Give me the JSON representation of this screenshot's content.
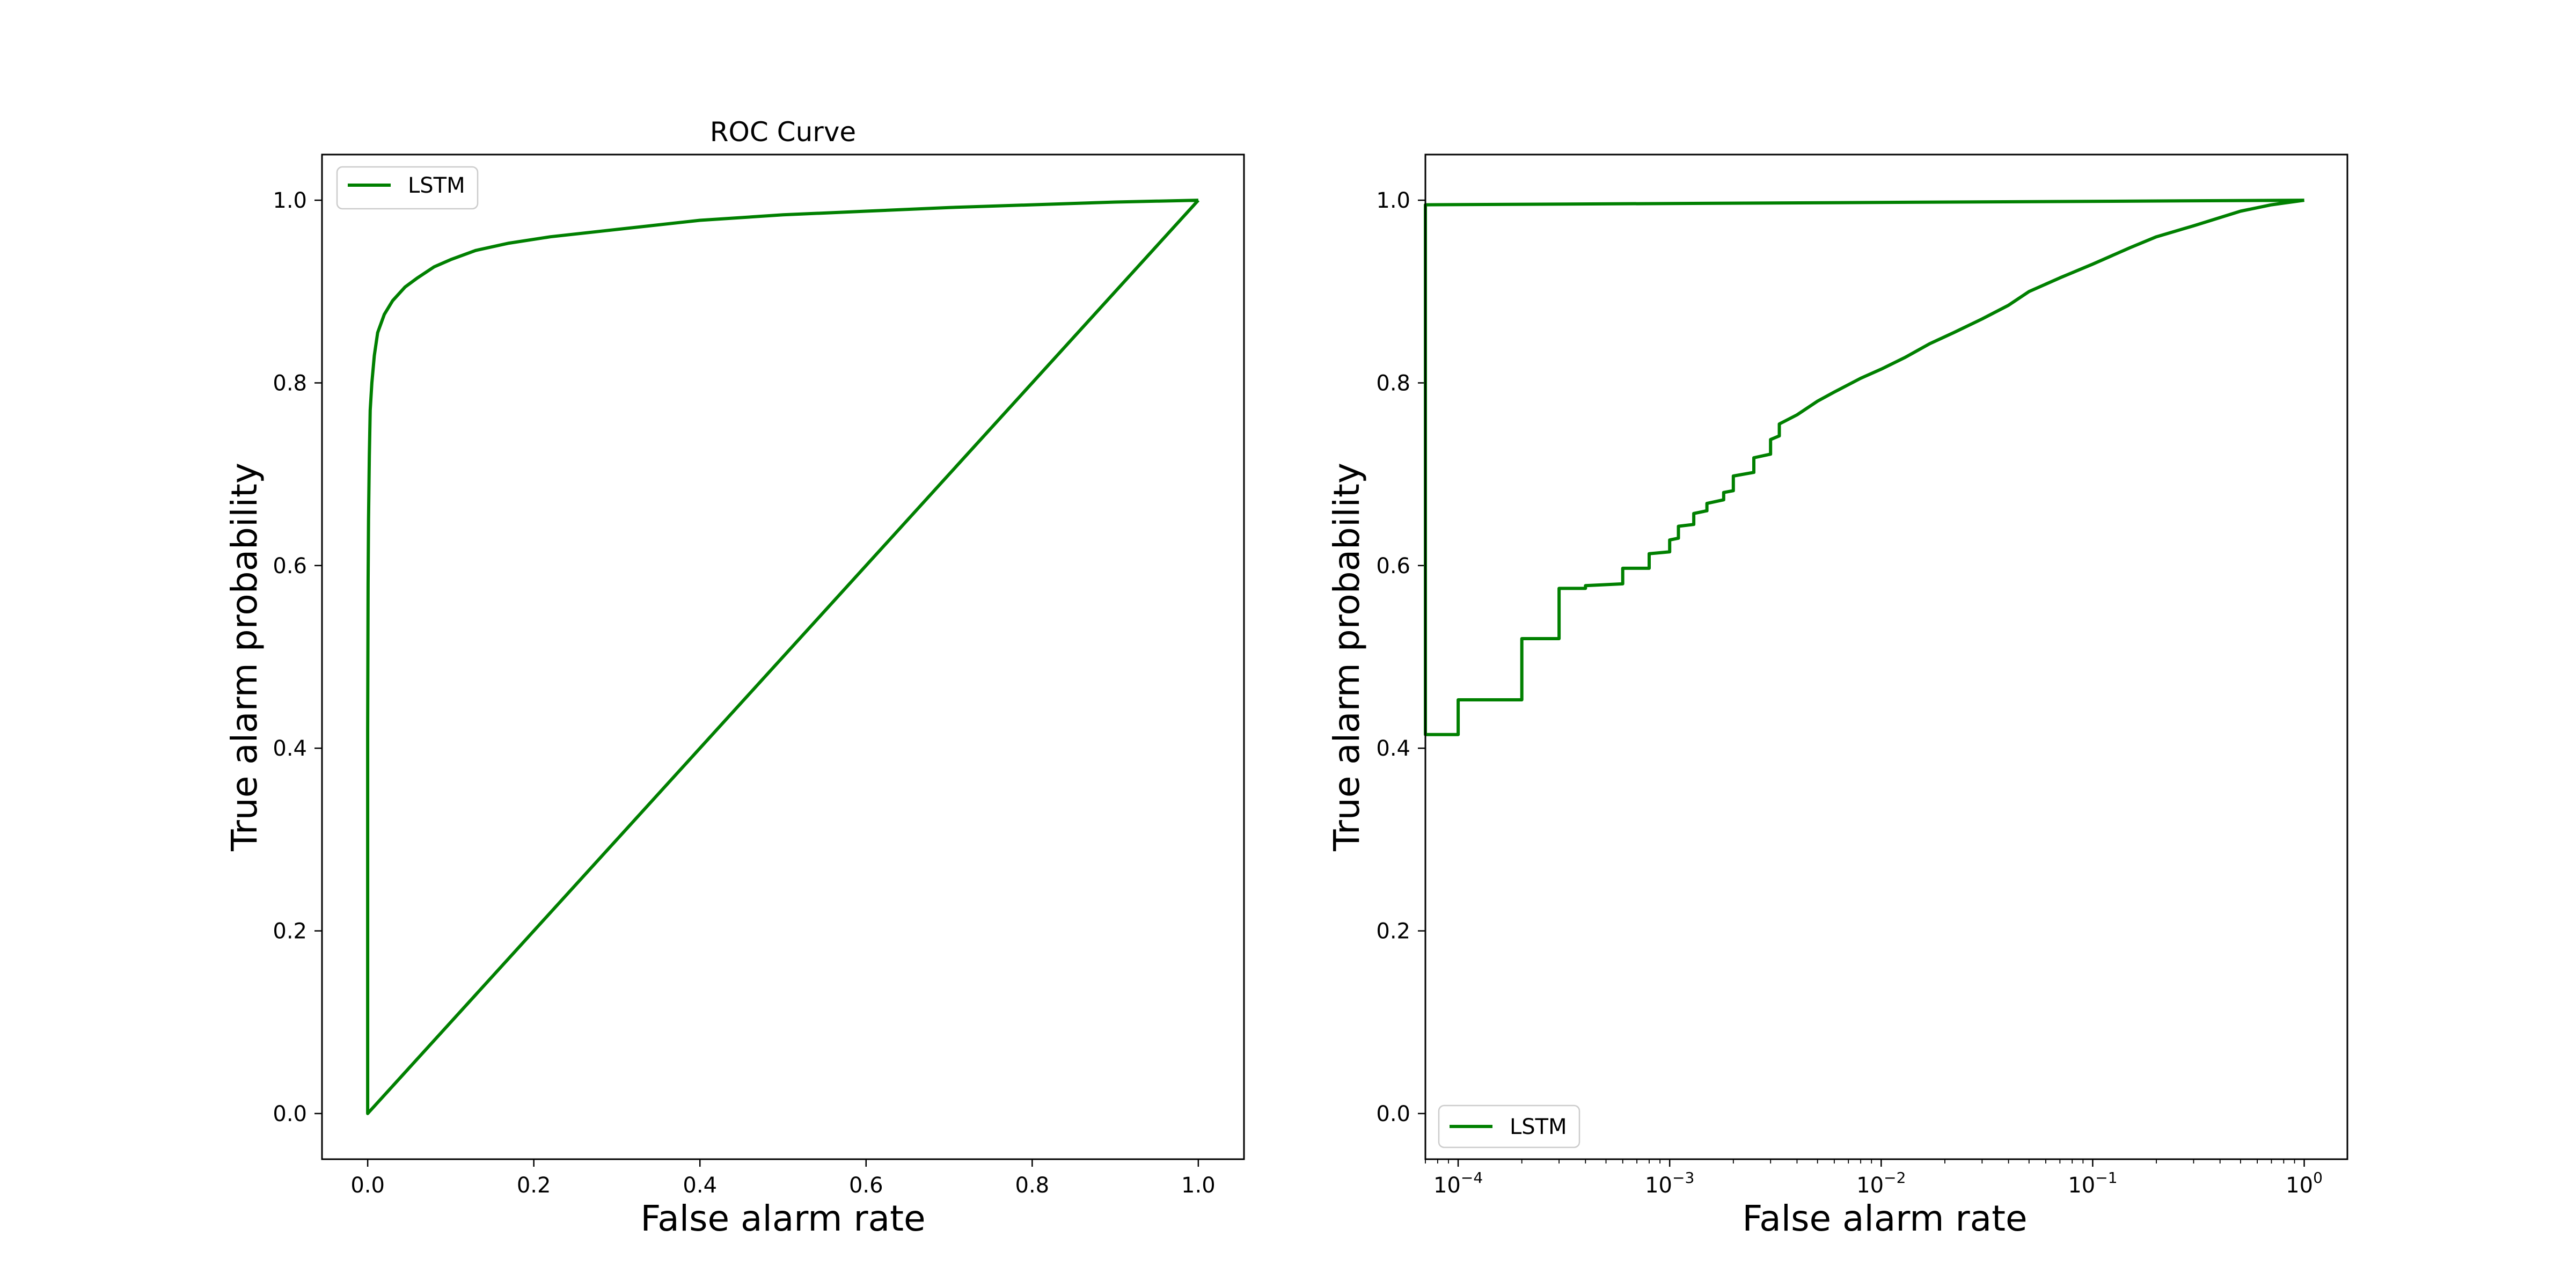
{
  "chart_data": [
    {
      "type": "line",
      "title": "ROC Curve",
      "xlabel": "False alarm rate",
      "ylabel": "True alarm probability",
      "xscale": "linear",
      "xlim": [
        -0.055,
        1.055
      ],
      "ylim": [
        -0.05,
        1.05
      ],
      "xticks": [
        0.0,
        0.2,
        0.4,
        0.6,
        0.8,
        1.0
      ],
      "xtick_labels": [
        "0.0",
        "0.2",
        "0.4",
        "0.6",
        "0.8",
        "1.0"
      ],
      "yticks": [
        0.0,
        0.2,
        0.4,
        0.6,
        0.8,
        1.0
      ],
      "ytick_labels": [
        "0.0",
        "0.2",
        "0.4",
        "0.6",
        "0.8",
        "1.0"
      ],
      "grid": false,
      "legend": "upper left",
      "series": [
        {
          "name": "LSTM",
          "color": "#008000",
          "x": [
            1.0,
            0.0,
            0.0,
            0.0005,
            0.001,
            0.002,
            0.003,
            0.005,
            0.008,
            0.012,
            0.02,
            0.03,
            0.045,
            0.06,
            0.08,
            0.1,
            0.13,
            0.17,
            0.22,
            0.3,
            0.4,
            0.5,
            0.6,
            0.7,
            0.8,
            0.9,
            0.95,
            1.0
          ],
          "y": [
            1.0,
            0.0,
            0.42,
            0.58,
            0.65,
            0.72,
            0.77,
            0.8,
            0.83,
            0.855,
            0.875,
            0.89,
            0.905,
            0.915,
            0.927,
            0.935,
            0.945,
            0.953,
            0.96,
            0.968,
            0.978,
            0.984,
            0.988,
            0.992,
            0.995,
            0.998,
            0.999,
            1.0
          ]
        }
      ]
    },
    {
      "type": "line",
      "title": "",
      "xlabel": "False alarm rate",
      "ylabel": "True alarm probability",
      "xscale": "log",
      "xlim": [
        7e-05,
        1.6
      ],
      "ylim": [
        -0.05,
        1.05
      ],
      "xticks": [
        0.0001,
        0.001,
        0.01,
        0.1,
        1
      ],
      "xtick_labels": [
        {
          "base": "10",
          "exp": "−4"
        },
        {
          "base": "10",
          "exp": "−3"
        },
        {
          "base": "10",
          "exp": "−2"
        },
        {
          "base": "10",
          "exp": "−1"
        },
        {
          "base": "10",
          "exp": "0"
        }
      ],
      "yticks": [
        0.0,
        0.2,
        0.4,
        0.6,
        0.8,
        1.0
      ],
      "ytick_labels": [
        "0.0",
        "0.2",
        "0.4",
        "0.6",
        "0.8",
        "1.0"
      ],
      "grid": false,
      "legend": "lower left",
      "series": [
        {
          "name": "LSTM",
          "color": "#008000",
          "x": [
            1.0,
            7e-05,
            7e-05,
            0.0001,
            0.0001,
            0.0002,
            0.0002,
            0.0003,
            0.0003,
            0.0004,
            0.0004,
            0.0006,
            0.0006,
            0.0008,
            0.0008,
            0.001,
            0.001,
            0.0011,
            0.0011,
            0.0013,
            0.0013,
            0.0015,
            0.0015,
            0.0018,
            0.0018,
            0.002,
            0.002,
            0.0025,
            0.0025,
            0.003,
            0.003,
            0.0033,
            0.0033,
            0.004,
            0.005,
            0.006,
            0.008,
            0.01,
            0.013,
            0.017,
            0.022,
            0.03,
            0.04,
            0.05,
            0.07,
            0.1,
            0.15,
            0.2,
            0.3,
            0.5,
            0.7,
            1.0
          ],
          "y": [
            1.0,
            0.995,
            0.415,
            0.415,
            0.453,
            0.453,
            0.52,
            0.52,
            0.575,
            0.575,
            0.578,
            0.58,
            0.597,
            0.597,
            0.613,
            0.615,
            0.628,
            0.63,
            0.643,
            0.645,
            0.657,
            0.66,
            0.668,
            0.672,
            0.68,
            0.682,
            0.698,
            0.702,
            0.718,
            0.722,
            0.738,
            0.742,
            0.755,
            0.765,
            0.78,
            0.79,
            0.805,
            0.815,
            0.828,
            0.843,
            0.855,
            0.87,
            0.885,
            0.9,
            0.915,
            0.93,
            0.948,
            0.96,
            0.972,
            0.988,
            0.995,
            1.0
          ]
        }
      ]
    }
  ]
}
